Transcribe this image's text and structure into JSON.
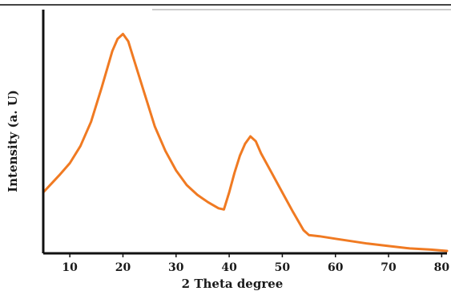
{
  "chart_data": {
    "type": "line",
    "xlabel": "2 Theta degree",
    "ylabel": "Intensity (a. U)",
    "xlim": [
      5,
      81
    ],
    "ylim": [
      0,
      100
    ],
    "x_ticks": [
      10,
      20,
      30,
      40,
      50,
      60,
      70,
      80
    ],
    "y_ticks_shown": false,
    "grid": false,
    "legend": "none",
    "line_color": "#f07a22",
    "series": [
      {
        "x": [
          5,
          8,
          10,
          12,
          14,
          16,
          18,
          19,
          20,
          21,
          22,
          24,
          26,
          28,
          30,
          32,
          34,
          36,
          38,
          39,
          40,
          41,
          42,
          43,
          44,
          45,
          46,
          48,
          50,
          52,
          54,
          55,
          57,
          60,
          63,
          66,
          70,
          74,
          78,
          81
        ],
        "y": [
          25,
          32,
          37,
          44,
          54,
          68,
          83,
          88,
          90,
          87,
          80,
          66,
          52,
          42,
          34,
          28,
          24,
          21,
          18.5,
          18,
          25,
          33,
          40,
          45,
          48,
          46,
          41,
          33,
          25,
          17,
          9.5,
          7.5,
          7,
          6,
          5,
          4,
          3,
          2,
          1.5,
          1
        ]
      }
    ]
  }
}
